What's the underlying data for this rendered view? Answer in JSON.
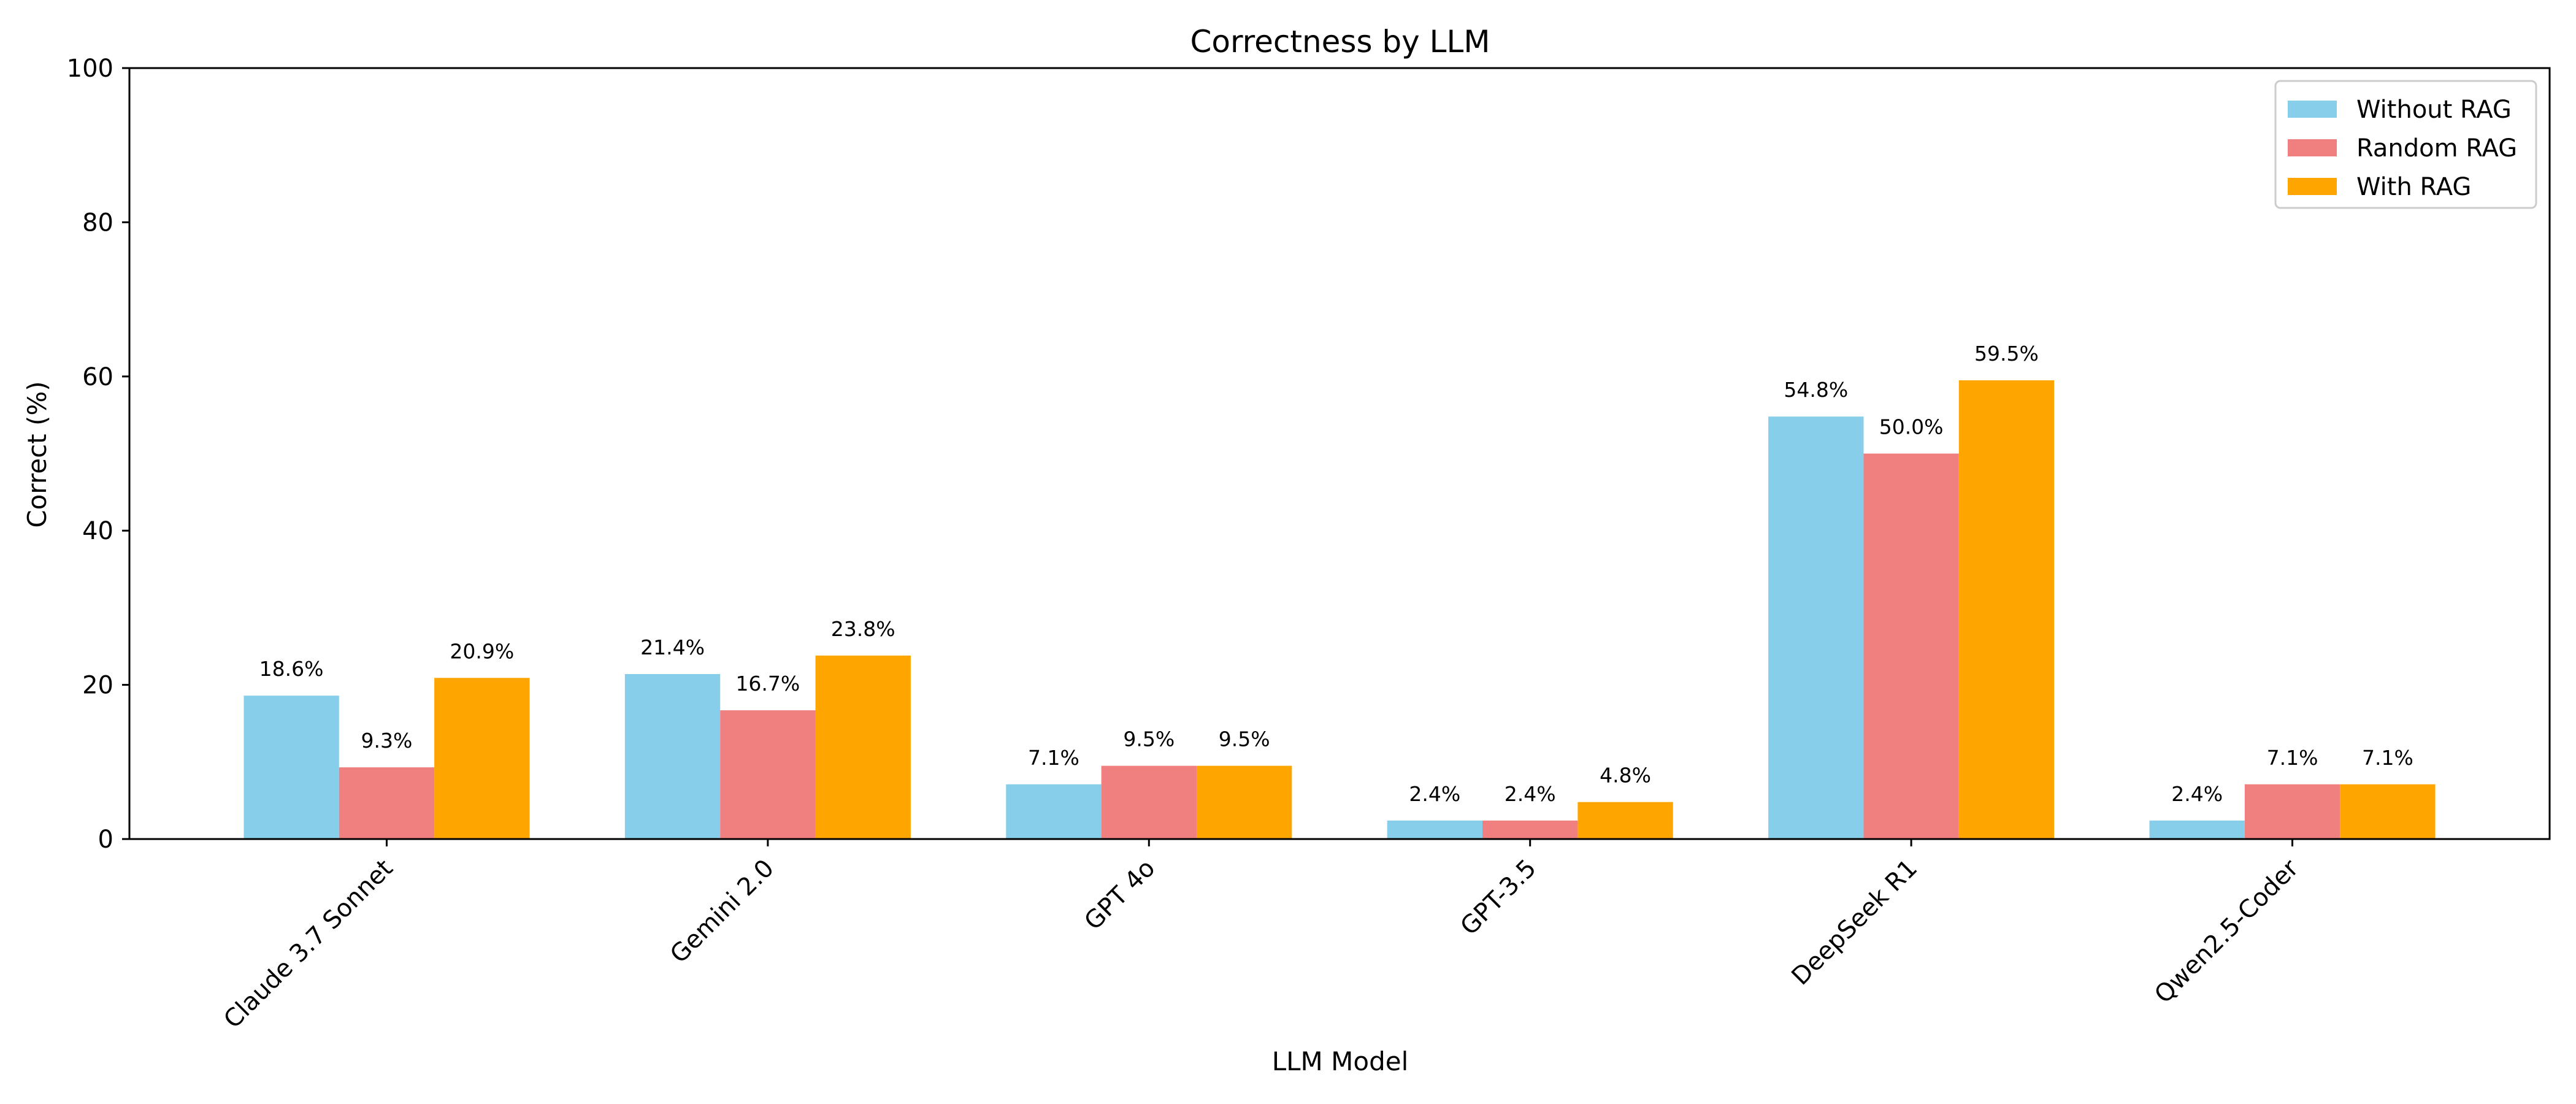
{
  "chart_data": {
    "type": "bar",
    "title": "Correctness by LLM",
    "xlabel": "LLM Model",
    "ylabel": "Correct (%)",
    "ylim": [
      0,
      100
    ],
    "yticks": [
      0,
      20,
      40,
      60,
      80,
      100
    ],
    "categories": [
      "Claude 3.7 Sonnet",
      "Gemini 2.0",
      "GPT 4o",
      "GPT-3.5",
      "DeepSeek R1",
      "Qwen2.5-Coder"
    ],
    "series": [
      {
        "name": "Without RAG",
        "color": "#87ceeb",
        "values": [
          18.6,
          21.4,
          7.1,
          2.4,
          54.8,
          2.4
        ],
        "labels": [
          "18.6%",
          "21.4%",
          "7.1%",
          "2.4%",
          "54.8%",
          "2.4%"
        ]
      },
      {
        "name": "Random RAG",
        "color": "#f08080",
        "values": [
          9.3,
          16.7,
          9.5,
          2.4,
          50.0,
          7.1
        ],
        "labels": [
          "9.3%",
          "16.7%",
          "9.5%",
          "2.4%",
          "50.0%",
          "7.1%"
        ]
      },
      {
        "name": "With RAG",
        "color": "#ffa500",
        "values": [
          20.9,
          23.8,
          9.5,
          4.8,
          59.5,
          7.1
        ],
        "labels": [
          "20.9%",
          "23.8%",
          "9.5%",
          "4.8%",
          "59.5%",
          "7.1%"
        ]
      }
    ],
    "legend_position": "top-right",
    "grid": false
  }
}
